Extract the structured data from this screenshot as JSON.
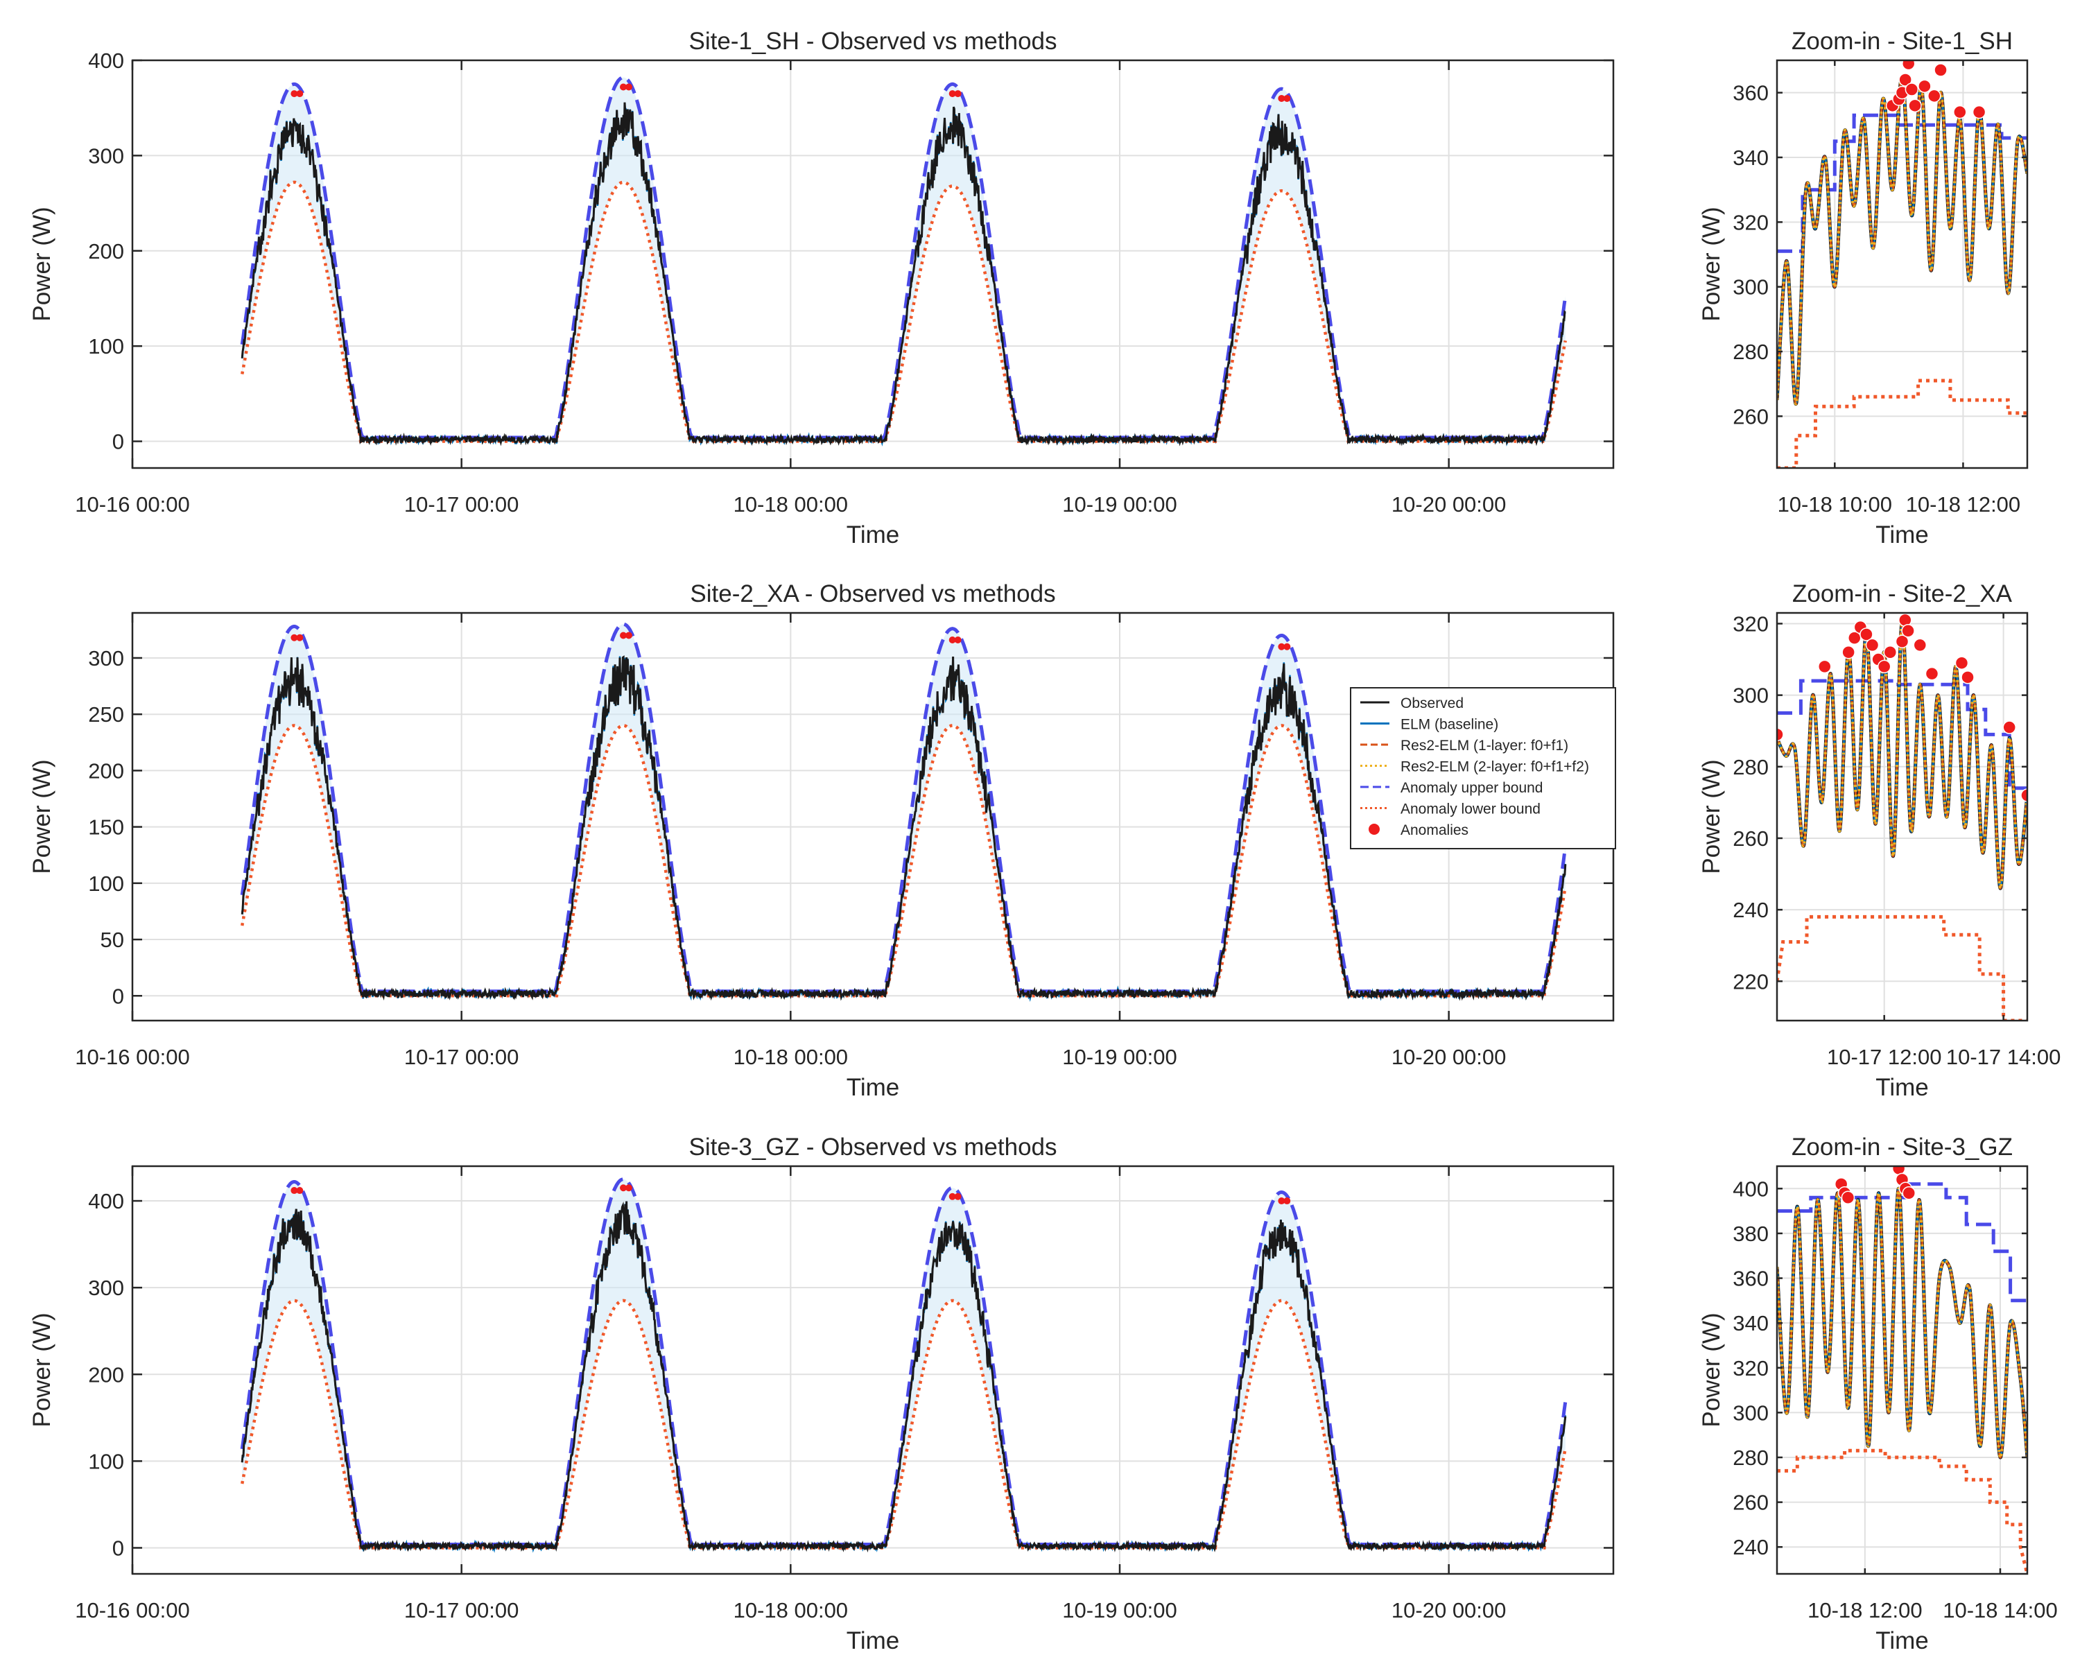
{
  "figure": {
    "palette": {
      "observed": "#1a1a1a",
      "elm": "#0072bd",
      "res1": "#d95319",
      "res2": "#edb120",
      "upper": "#4a4ae8",
      "lower": "#f0582a",
      "anomaly": "#ee1c1c",
      "band": "#cfe7f5",
      "grid": "#e0e0e0",
      "axis": "#262626"
    },
    "legend": {
      "entries": [
        "Observed",
        "ELM (baseline)",
        "Res2-ELM (1-layer: f0+f1)",
        "Res2-ELM (2-layer: f0+f1+f2)",
        "Anomaly upper bound",
        "Anomaly lower bound",
        "Anomalies"
      ]
    }
  },
  "chart_data": [
    {
      "type": "line",
      "title": "Site-1_SH - Observed vs methods",
      "xlabel": "Time",
      "ylabel": "Power (W)",
      "xlim": [
        0,
        108
      ],
      "ylim": [
        -28,
        400
      ],
      "x_ticks": [
        0,
        24,
        48,
        72,
        96
      ],
      "x_tick_labels": [
        "10-16 00:00",
        "10-17 00:00",
        "10-18 00:00",
        "10-19 00:00",
        "10-20 00:00"
      ],
      "y_ticks": [
        0,
        100,
        200,
        300,
        400
      ],
      "y_tick_labels": [
        "0",
        "100",
        "200",
        "300",
        "400"
      ],
      "data_span_hours": [
        8,
        104.5
      ],
      "daily_peaks": [
        {
          "day": "10-16",
          "observed_peak": 365,
          "lower_bound_peak": 272
        },
        {
          "day": "10-17",
          "observed_peak": 372,
          "lower_bound_peak": 272
        },
        {
          "day": "10-18",
          "observed_peak": 365,
          "lower_bound_peak": 268
        },
        {
          "day": "10-19",
          "observed_peak": 360,
          "lower_bound_peak": 263
        }
      ],
      "series": [
        "Observed",
        "ELM (baseline)",
        "Res2-ELM (1-layer: f0+f1)",
        "Res2-ELM (2-layer: f0+f1+f2)",
        "Anomaly upper bound",
        "Anomaly lower bound",
        "Anomalies"
      ]
    },
    {
      "type": "line",
      "title": "Site-2_XA - Observed vs methods",
      "xlabel": "Time",
      "ylabel": "Power (W)",
      "xlim": [
        0,
        108
      ],
      "ylim": [
        -22,
        340
      ],
      "x_ticks": [
        0,
        24,
        48,
        72,
        96
      ],
      "x_tick_labels": [
        "10-16 00:00",
        "10-17 00:00",
        "10-18 00:00",
        "10-19 00:00",
        "10-20 00:00"
      ],
      "y_ticks": [
        0,
        50,
        100,
        150,
        200,
        250,
        300
      ],
      "y_tick_labels": [
        "0",
        "50",
        "100",
        "150",
        "200",
        "250",
        "300"
      ],
      "data_span_hours": [
        8,
        104.5
      ],
      "daily_peaks": [
        {
          "day": "10-16",
          "observed_peak": 318,
          "lower_bound_peak": 240
        },
        {
          "day": "10-17",
          "observed_peak": 320,
          "lower_bound_peak": 240
        },
        {
          "day": "10-18",
          "observed_peak": 316,
          "lower_bound_peak": 240
        },
        {
          "day": "10-19",
          "observed_peak": 310,
          "lower_bound_peak": 240
        }
      ],
      "series": [
        "Observed",
        "ELM (baseline)",
        "Res2-ELM (1-layer: f0+f1)",
        "Res2-ELM (2-layer: f0+f1+f2)",
        "Anomaly upper bound",
        "Anomaly lower bound",
        "Anomalies"
      ]
    },
    {
      "type": "line",
      "title": "Site-3_GZ - Observed vs methods",
      "xlabel": "Time",
      "ylabel": "Power (W)",
      "xlim": [
        0,
        108
      ],
      "ylim": [
        -30,
        440
      ],
      "x_ticks": [
        0,
        24,
        48,
        72,
        96
      ],
      "x_tick_labels": [
        "10-16 00:00",
        "10-17 00:00",
        "10-18 00:00",
        "10-19 00:00",
        "10-20 00:00"
      ],
      "y_ticks": [
        0,
        100,
        200,
        300,
        400
      ],
      "y_tick_labels": [
        "0",
        "100",
        "200",
        "300",
        "400"
      ],
      "data_span_hours": [
        8,
        104.5
      ],
      "daily_peaks": [
        {
          "day": "10-16",
          "observed_peak": 412,
          "lower_bound_peak": 285
        },
        {
          "day": "10-17",
          "observed_peak": 415,
          "lower_bound_peak": 285
        },
        {
          "day": "10-18",
          "observed_peak": 405,
          "lower_bound_peak": 285
        },
        {
          "day": "10-19",
          "observed_peak": 400,
          "lower_bound_peak": 285
        }
      ],
      "series": [
        "Observed",
        "ELM (baseline)",
        "Res2-ELM (1-layer: f0+f1)",
        "Res2-ELM (2-layer: f0+f1+f2)",
        "Anomaly upper bound",
        "Anomaly lower bound",
        "Anomalies"
      ]
    },
    {
      "type": "line",
      "title": "Zoom-in - Site-1_SH",
      "xlabel": "Time",
      "ylabel": "Power (W)",
      "xlim": [
        9.1,
        13.0
      ],
      "ylim": [
        244,
        370
      ],
      "x_ticks": [
        10,
        12
      ],
      "x_tick_labels": [
        "10-18 10:00",
        "10-18 12:00"
      ],
      "y_ticks": [
        260,
        280,
        300,
        320,
        340,
        360
      ],
      "y_tick_labels": [
        "260",
        "280",
        "300",
        "320",
        "340",
        "360"
      ],
      "observed": {
        "x": [
          9.1,
          9.25,
          9.4,
          9.55,
          9.7,
          9.85,
          10.0,
          10.15,
          10.3,
          10.45,
          10.6,
          10.75,
          10.9,
          11.05,
          11.2,
          11.35,
          11.5,
          11.65,
          11.8,
          11.95,
          12.1,
          12.25,
          12.4,
          12.55,
          12.7,
          12.85,
          13.0
        ],
        "y": [
          265,
          308,
          264,
          330,
          318,
          340,
          300,
          348,
          325,
          352,
          312,
          358,
          330,
          365,
          322,
          362,
          305,
          360,
          318,
          352,
          302,
          355,
          318,
          350,
          298,
          345,
          335
        ]
      },
      "upper_bound": {
        "x": [
          9.1,
          9.5,
          9.5,
          10.0,
          10.0,
          10.3,
          10.3,
          11.0,
          11.0,
          12.6,
          12.6,
          13.0
        ],
        "y": [
          311,
          311,
          330,
          330,
          345,
          345,
          353,
          353,
          350,
          350,
          346,
          346
        ]
      },
      "lower_bound": {
        "x": [
          9.1,
          9.4,
          9.4,
          9.7,
          9.7,
          10.3,
          10.3,
          11.3,
          11.3,
          11.8,
          11.8,
          12.7,
          12.7,
          13.0
        ],
        "y": [
          244,
          244,
          254,
          254,
          263,
          263,
          266,
          266,
          271,
          271,
          265,
          265,
          261,
          261
        ]
      },
      "anomalies": {
        "x": [
          10.9,
          11.0,
          11.05,
          11.1,
          11.15,
          11.2,
          11.25,
          11.4,
          11.55,
          11.65,
          11.95,
          12.25
        ],
        "y": [
          356,
          358,
          360,
          364,
          369,
          361,
          356,
          362,
          359,
          367,
          354,
          354
        ]
      }
    },
    {
      "type": "line",
      "title": "Zoom-in - Site-2_XA",
      "xlabel": "Time",
      "ylabel": "Power (W)",
      "xlim": [
        10.2,
        14.4
      ],
      "ylim": [
        209,
        323
      ],
      "x_ticks": [
        12,
        14
      ],
      "x_tick_labels": [
        "10-17 12:00",
        "10-17 14:00"
      ],
      "y_ticks": [
        220,
        240,
        260,
        280,
        300,
        320
      ],
      "y_tick_labels": [
        "220",
        "240",
        "260",
        "280",
        "300",
        "320"
      ],
      "observed": {
        "x": [
          10.2,
          10.35,
          10.5,
          10.65,
          10.8,
          10.95,
          11.1,
          11.25,
          11.4,
          11.55,
          11.7,
          11.85,
          12.0,
          12.15,
          12.3,
          12.45,
          12.6,
          12.75,
          12.9,
          13.05,
          13.2,
          13.35,
          13.5,
          13.65,
          13.8,
          13.95,
          14.1,
          14.25,
          14.4
        ],
        "y": [
          288,
          283,
          285,
          258,
          300,
          270,
          306,
          262,
          313,
          268,
          318,
          264,
          312,
          255,
          321,
          262,
          303,
          266,
          300,
          266,
          308,
          263,
          300,
          256,
          286,
          246,
          288,
          253,
          272
        ]
      },
      "upper_bound": {
        "x": [
          10.2,
          10.6,
          10.6,
          12.2,
          12.2,
          13.4,
          13.4,
          13.7,
          13.7,
          14.1,
          14.1,
          14.4
        ],
        "y": [
          295,
          295,
          304,
          304,
          303,
          303,
          296,
          296,
          289,
          289,
          274,
          274
        ]
      },
      "lower_bound": {
        "x": [
          10.2,
          10.3,
          10.3,
          10.7,
          10.7,
          13.0,
          13.0,
          13.6,
          13.6,
          14.0,
          14.0,
          14.4
        ],
        "y": [
          220,
          231,
          231,
          231,
          238,
          238,
          233,
          233,
          222,
          222,
          209,
          209
        ]
      },
      "anomalies": {
        "x": [
          10.2,
          11.0,
          11.4,
          11.5,
          11.6,
          11.7,
          11.8,
          11.9,
          12.0,
          12.1,
          12.3,
          12.35,
          12.4,
          12.6,
          12.8,
          13.3,
          13.4,
          14.1,
          14.4
        ],
        "y": [
          289,
          308,
          312,
          316,
          319,
          317,
          314,
          310,
          308,
          312,
          315,
          321,
          318,
          314,
          306,
          309,
          305,
          291,
          272
        ]
      }
    },
    {
      "type": "line",
      "title": "Zoom-in - Site-3_GZ",
      "xlabel": "Time",
      "ylabel": "Power (W)",
      "xlim": [
        10.7,
        14.4
      ],
      "ylim": [
        228,
        410
      ],
      "x_ticks": [
        12,
        14
      ],
      "x_tick_labels": [
        "10-18 12:00",
        "10-18 14:00"
      ],
      "y_ticks": [
        240,
        260,
        280,
        300,
        320,
        340,
        360,
        380,
        400
      ],
      "y_tick_labels": [
        "240",
        "260",
        "280",
        "300",
        "320",
        "340",
        "360",
        "380",
        "400"
      ],
      "observed": {
        "x": [
          10.7,
          10.85,
          11.0,
          11.15,
          11.3,
          11.45,
          11.6,
          11.75,
          11.9,
          12.05,
          12.2,
          12.35,
          12.5,
          12.65,
          12.8,
          12.95,
          13.1,
          13.25,
          13.4,
          13.55,
          13.7,
          13.85,
          14.0,
          14.15,
          14.3,
          14.4
        ],
        "y": [
          365,
          300,
          392,
          298,
          395,
          318,
          398,
          302,
          395,
          285,
          398,
          300,
          400,
          292,
          395,
          300,
          360,
          365,
          340,
          355,
          285,
          348,
          280,
          340,
          315,
          280
        ]
      },
      "upper_bound": {
        "x": [
          10.7,
          11.2,
          11.2,
          12.6,
          12.6,
          13.2,
          13.2,
          13.5,
          13.5,
          13.9,
          13.9,
          14.15,
          14.15,
          14.4
        ],
        "y": [
          390,
          390,
          396,
          396,
          402,
          402,
          396,
          396,
          384,
          384,
          372,
          372,
          350,
          350
        ]
      },
      "lower_bound": {
        "x": [
          10.7,
          11.0,
          11.0,
          11.7,
          11.7,
          12.3,
          12.3,
          13.1,
          13.1,
          13.5,
          13.5,
          13.85,
          13.85,
          14.1,
          14.1,
          14.3,
          14.3,
          14.4
        ],
        "y": [
          274,
          274,
          280,
          280,
          283,
          283,
          280,
          280,
          276,
          276,
          270,
          270,
          260,
          260,
          250,
          250,
          240,
          228
        ]
      },
      "anomalies": {
        "x": [
          11.65,
          11.7,
          11.75,
          12.5,
          12.55,
          12.6,
          12.65
        ],
        "y": [
          402,
          398,
          396,
          409,
          404,
          400,
          398
        ]
      }
    }
  ]
}
